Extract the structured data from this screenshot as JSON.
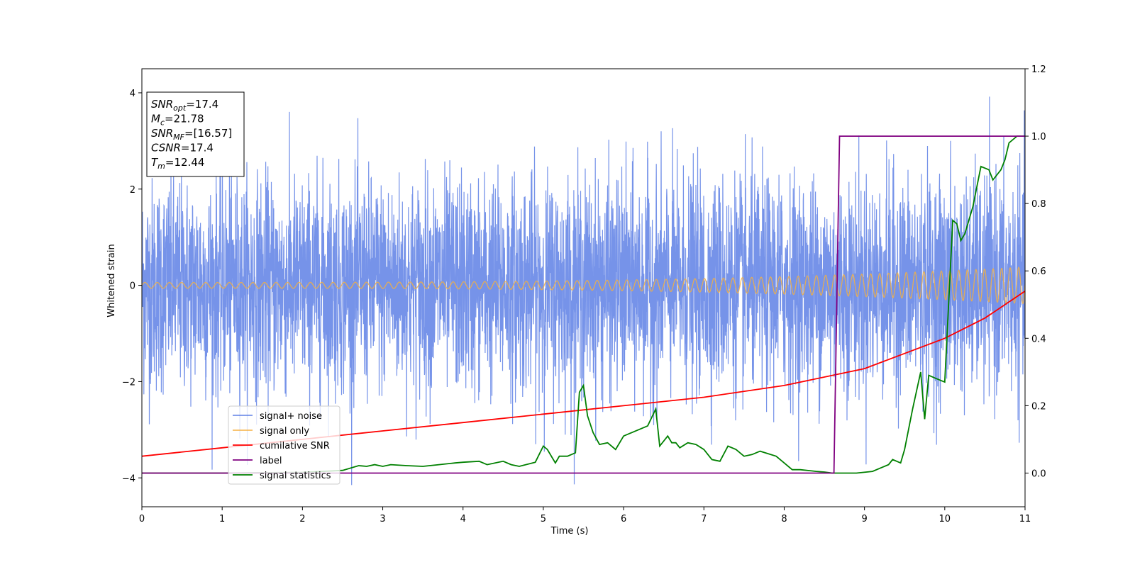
{
  "chart_data": {
    "type": "line",
    "xlabel": "Time (s)",
    "ylabel": "Whitened strain",
    "xlim": [
      0,
      11
    ],
    "ylim": [
      -4.6,
      4.5
    ],
    "y2lim": [
      -0.1,
      1.2
    ],
    "x_ticks": [
      "0",
      "1",
      "2",
      "3",
      "4",
      "5",
      "6",
      "7",
      "8",
      "9",
      "10",
      "11"
    ],
    "y_ticks": [
      "−4",
      "−2",
      "0",
      "2",
      "4"
    ],
    "y2_ticks": [
      "0.0",
      "0.2",
      "0.4",
      "0.6",
      "0.8",
      "1.0",
      "1.2"
    ],
    "info_box": [
      {
        "base": "SNR",
        "sub": "opt",
        "rest": "=17.4"
      },
      {
        "base": "M",
        "sub": "c",
        "rest": "=21.78"
      },
      {
        "base": "SNR",
        "sub": "MF",
        "rest": "=[16.57]"
      },
      {
        "base": "CSNR",
        "sub": "",
        "rest": "=17.4"
      },
      {
        "base": "T",
        "sub": "m",
        "rest": "=12.44"
      }
    ],
    "legend_position": "lower-left",
    "series": [
      {
        "name": "signal+ noise",
        "axis": "left",
        "color": "#4169e1",
        "description_kind": "noise",
        "stats": {
          "center": 0.0,
          "std": 1.1,
          "min": -4.15,
          "max": 4.1
        }
      },
      {
        "name": "signal only",
        "axis": "left",
        "color": "#f5b041",
        "description_kind": "chirp",
        "chirp": {
          "amp_start": 0.06,
          "amp_end": 0.38,
          "cycles_start_per_s": 6.5,
          "cycles_end_per_s": 9.5
        }
      },
      {
        "name": "cumilative SNR",
        "axis": "right",
        "color": "#ff0000",
        "x": [
          0,
          1,
          2,
          3,
          4,
          5,
          6,
          7,
          8,
          9,
          10,
          10.5,
          11
        ],
        "y": [
          0.05,
          0.075,
          0.1,
          0.125,
          0.15,
          0.175,
          0.2,
          0.225,
          0.26,
          0.31,
          0.4,
          0.46,
          0.54
        ]
      },
      {
        "name": "label",
        "axis": "right",
        "color": "#800080",
        "x": [
          0,
          8.62,
          8.69,
          11
        ],
        "y": [
          0.0,
          0.0,
          1.0,
          1.0
        ]
      },
      {
        "name": "signal statistics",
        "axis": "right",
        "color": "#008000",
        "x": [
          0,
          1,
          2,
          2.5,
          2.7,
          2.8,
          2.9,
          3.0,
          3.1,
          3.3,
          3.5,
          3.7,
          3.9,
          4.0,
          4.2,
          4.3,
          4.5,
          4.6,
          4.7,
          4.9,
          5.0,
          5.05,
          5.15,
          5.2,
          5.3,
          5.4,
          5.45,
          5.5,
          5.55,
          5.62,
          5.7,
          5.8,
          5.9,
          6.0,
          6.1,
          6.2,
          6.3,
          6.4,
          6.45,
          6.55,
          6.6,
          6.65,
          6.7,
          6.8,
          6.9,
          7.0,
          7.1,
          7.2,
          7.3,
          7.4,
          7.5,
          7.6,
          7.7,
          7.9,
          8.0,
          8.1,
          8.2,
          8.4,
          8.5,
          8.6,
          8.7,
          8.9,
          9.1,
          9.2,
          9.3,
          9.35,
          9.45,
          9.5,
          9.6,
          9.7,
          9.75,
          9.8,
          9.9,
          10.0,
          10.1,
          10.15,
          10.2,
          10.25,
          10.35,
          10.45,
          10.55,
          10.6,
          10.7,
          10.75,
          10.8,
          10.9,
          11.0
        ],
        "y": [
          0.0,
          0.0,
          0.002,
          0.008,
          0.022,
          0.02,
          0.025,
          0.02,
          0.025,
          0.022,
          0.02,
          0.025,
          0.03,
          0.032,
          0.035,
          0.025,
          0.035,
          0.025,
          0.02,
          0.032,
          0.08,
          0.07,
          0.03,
          0.05,
          0.05,
          0.06,
          0.24,
          0.26,
          0.17,
          0.12,
          0.085,
          0.09,
          0.07,
          0.11,
          0.12,
          0.13,
          0.14,
          0.19,
          0.08,
          0.11,
          0.09,
          0.09,
          0.075,
          0.09,
          0.085,
          0.07,
          0.04,
          0.035,
          0.08,
          0.07,
          0.05,
          0.055,
          0.065,
          0.05,
          0.03,
          0.01,
          0.01,
          0.005,
          0.003,
          0.0,
          0.0,
          0.0,
          0.005,
          0.015,
          0.025,
          0.04,
          0.03,
          0.07,
          0.19,
          0.3,
          0.16,
          0.29,
          0.28,
          0.27,
          0.75,
          0.74,
          0.69,
          0.71,
          0.79,
          0.91,
          0.9,
          0.87,
          0.9,
          0.93,
          0.98,
          1.0,
          1.0
        ]
      }
    ]
  }
}
